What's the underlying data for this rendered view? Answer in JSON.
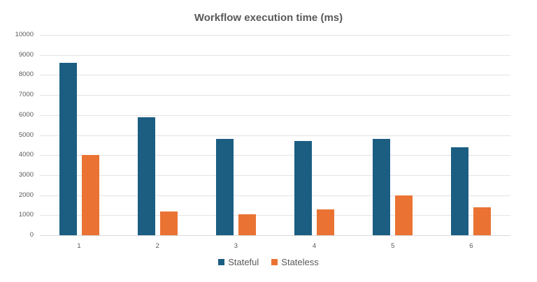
{
  "chart_data": {
    "type": "bar",
    "title": "Workflow execution time (ms)",
    "xlabel": "",
    "ylabel": "",
    "categories": [
      "1",
      "2",
      "3",
      "4",
      "5",
      "6"
    ],
    "series": [
      {
        "name": "Stateful",
        "color": "#1b5e82",
        "values": [
          8600,
          5900,
          4800,
          4700,
          4800,
          4400
        ]
      },
      {
        "name": "Stateless",
        "color": "#ea7333",
        "values": [
          4000,
          1200,
          1030,
          1300,
          1980,
          1400
        ]
      }
    ],
    "ylim": [
      0,
      10000
    ],
    "yticks": [
      0,
      1000,
      2000,
      3000,
      4000,
      5000,
      6000,
      7000,
      8000,
      9000,
      10000
    ],
    "grid": true,
    "legend_position": "bottom"
  }
}
